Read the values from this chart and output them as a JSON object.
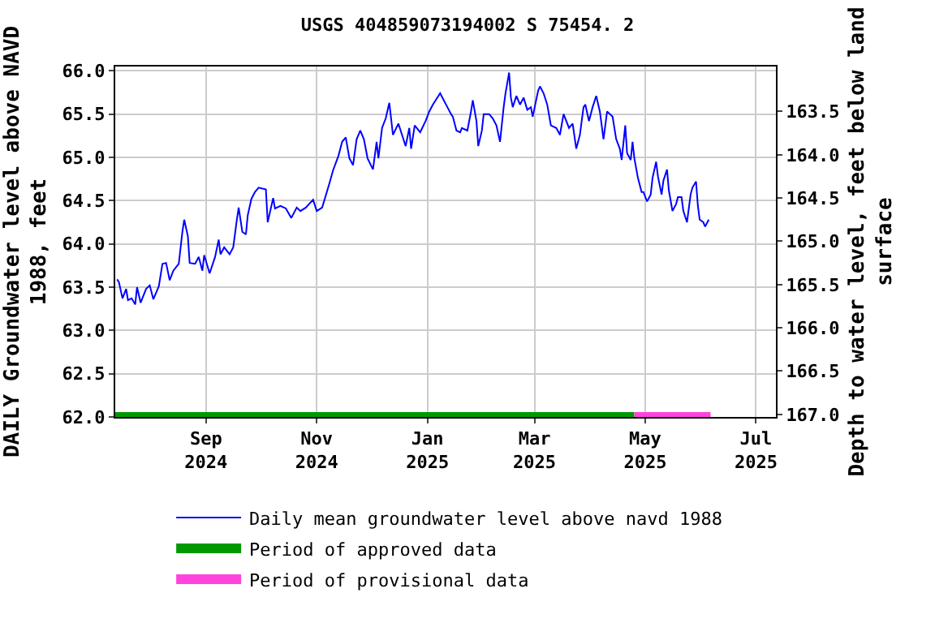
{
  "chart_data": {
    "type": "line",
    "title": "USGS 404859073194002 S 75454. 2",
    "ylabel": "DAILY Groundwater level above NAVD\n1988, feet",
    "y2label": "Depth to water level, feet below land\nsurface",
    "xlim": [
      "2024-07-13",
      "2025-07-12"
    ],
    "xticks": [
      {
        "value": "2024-09-01",
        "label": "Sep\n2024"
      },
      {
        "value": "2024-11-01",
        "label": "Nov\n2024"
      },
      {
        "value": "2025-01-01",
        "label": "Jan\n2025"
      },
      {
        "value": "2025-03-01",
        "label": "Mar\n2025"
      },
      {
        "value": "2025-05-01",
        "label": "May\n2025"
      },
      {
        "value": "2025-07-01",
        "label": "Jul\n2025"
      }
    ],
    "ylim": [
      62,
      66.05
    ],
    "yticks": [
      {
        "value": 62,
        "label": "62.0"
      },
      62.5,
      {
        "value": 63,
        "label": "63.0"
      },
      63.5,
      {
        "value": 64,
        "label": "64.0"
      },
      64.5,
      {
        "value": 65,
        "label": "65.0"
      },
      65.5,
      {
        "value": 66,
        "label": "66.0"
      }
    ],
    "y2lim": [
      167.03,
      162.98
    ],
    "y2ticks": [
      163.5,
      {
        "value": 164,
        "label": "164.0"
      },
      164.5,
      {
        "value": 165,
        "label": "165.0"
      },
      165.5,
      {
        "value": 166,
        "label": "166.0"
      },
      166.5,
      {
        "value": 167,
        "label": "167.0"
      }
    ],
    "grid": true,
    "legend": "bottom",
    "marker": "none",
    "line_style": "solid",
    "series": [
      {
        "name": "Daily mean groundwater level above navd 1988",
        "color": "#0000ff",
        "x": [
          "2024-07-14",
          "2024-07-15",
          "2024-07-17",
          "2024-07-19",
          "2024-07-20",
          "2024-07-22",
          "2024-07-24",
          "2024-07-25",
          "2024-07-27",
          "2024-07-30",
          "2024-08-01",
          "2024-08-03",
          "2024-08-06",
          "2024-08-08",
          "2024-08-10",
          "2024-08-12",
          "2024-08-14",
          "2024-08-17",
          "2024-08-19",
          "2024-08-20",
          "2024-08-22",
          "2024-08-23",
          "2024-08-26",
          "2024-08-28",
          "2024-08-30",
          "2024-08-31",
          "2024-09-03",
          "2024-09-06",
          "2024-09-08",
          "2024-09-09",
          "2024-09-11",
          "2024-09-14",
          "2024-09-16",
          "2024-09-18",
          "2024-09-19",
          "2024-09-21",
          "2024-09-23",
          "2024-09-24",
          "2024-09-26",
          "2024-09-28",
          "2024-09-30",
          "2024-10-04",
          "2024-10-05",
          "2024-10-08",
          "2024-10-09",
          "2024-10-12",
          "2024-10-15",
          "2024-10-18",
          "2024-10-21",
          "2024-10-23",
          "2024-10-26",
          "2024-10-30",
          "2024-11-01",
          "2024-11-04",
          "2024-11-06",
          "2024-11-08",
          "2024-11-10",
          "2024-11-13",
          "2024-11-15",
          "2024-11-17",
          "2024-11-19",
          "2024-11-21",
          "2024-11-23",
          "2024-11-25",
          "2024-11-27",
          "2024-11-29",
          "2024-12-02",
          "2024-12-04",
          "2024-12-05",
          "2024-12-07",
          "2024-12-09",
          "2024-12-11",
          "2024-12-13",
          "2024-12-16",
          "2024-12-18",
          "2024-12-20",
          "2024-12-22",
          "2024-12-23",
          "2024-12-25",
          "2024-12-28",
          "2024-12-31",
          "2025-01-02",
          "2025-01-04",
          "2025-01-08",
          "2025-01-12",
          "2025-01-14",
          "2025-01-15",
          "2025-01-17",
          "2025-01-19",
          "2025-01-20",
          "2025-01-23",
          "2025-01-25",
          "2025-01-26",
          "2025-01-28",
          "2025-01-29",
          "2025-01-31",
          "2025-02-01",
          "2025-02-04",
          "2025-02-06",
          "2025-02-08",
          "2025-02-10",
          "2025-02-12",
          "2025-02-13",
          "2025-02-15",
          "2025-02-16",
          "2025-02-17",
          "2025-02-19",
          "2025-02-21",
          "2025-02-23",
          "2025-02-25",
          "2025-02-27",
          "2025-02-28",
          "2025-03-03",
          "2025-03-04",
          "2025-03-06",
          "2025-03-08",
          "2025-03-10",
          "2025-03-13",
          "2025-03-15",
          "2025-03-17",
          "2025-03-20",
          "2025-03-22",
          "2025-03-24",
          "2025-03-26",
          "2025-03-28",
          "2025-03-29",
          "2025-03-31",
          "2025-04-02",
          "2025-04-04",
          "2025-04-06",
          "2025-04-08",
          "2025-04-10",
          "2025-04-13",
          "2025-04-15",
          "2025-04-17",
          "2025-04-18",
          "2025-04-20",
          "2025-04-21",
          "2025-04-23",
          "2025-04-24",
          "2025-04-25",
          "2025-04-27",
          "2025-04-29",
          "2025-04-30",
          "2025-05-02",
          "2025-05-04",
          "2025-05-05",
          "2025-05-07",
          "2025-05-08",
          "2025-05-10",
          "2025-05-11",
          "2025-05-13",
          "2025-05-14",
          "2025-05-16",
          "2025-05-18",
          "2025-05-19",
          "2025-05-21",
          "2025-05-22",
          "2025-05-24",
          "2025-05-26",
          "2025-05-27",
          "2025-05-29",
          "2025-05-30",
          "2025-05-31",
          "2025-06-02",
          "2025-06-03",
          "2025-06-05"
        ],
        "values": [
          63.59,
          63.56,
          63.37,
          63.48,
          63.35,
          63.37,
          63.3,
          63.5,
          63.32,
          63.48,
          63.52,
          63.36,
          63.51,
          63.77,
          63.78,
          63.58,
          63.69,
          63.77,
          64.14,
          64.28,
          64.09,
          63.78,
          63.77,
          63.85,
          63.69,
          63.87,
          63.66,
          63.85,
          64.05,
          63.88,
          63.96,
          63.88,
          63.96,
          64.28,
          64.42,
          64.14,
          64.11,
          64.33,
          64.52,
          64.6,
          64.65,
          64.63,
          64.25,
          64.53,
          64.41,
          64.44,
          64.41,
          64.3,
          64.42,
          64.38,
          64.42,
          64.51,
          64.38,
          64.42,
          64.56,
          64.7,
          64.85,
          65.02,
          65.18,
          65.23,
          64.99,
          64.91,
          65.21,
          65.31,
          65.21,
          64.99,
          64.86,
          65.18,
          64.99,
          65.34,
          65.45,
          65.63,
          65.26,
          65.39,
          65.26,
          65.13,
          65.34,
          65.1,
          65.37,
          65.29,
          65.42,
          65.53,
          65.61,
          65.74,
          65.58,
          65.5,
          65.47,
          65.31,
          65.29,
          65.34,
          65.31,
          65.53,
          65.66,
          65.42,
          65.13,
          65.31,
          65.5,
          65.5,
          65.45,
          65.37,
          65.18,
          65.58,
          65.74,
          65.98,
          65.69,
          65.58,
          65.71,
          65.61,
          65.69,
          65.55,
          65.58,
          65.47,
          65.77,
          65.82,
          65.74,
          65.61,
          65.37,
          65.34,
          65.26,
          65.5,
          65.34,
          65.39,
          65.1,
          65.26,
          65.58,
          65.61,
          65.42,
          65.58,
          65.71,
          65.53,
          65.21,
          65.53,
          65.47,
          65.21,
          65.1,
          64.97,
          65.37,
          65.05,
          64.97,
          65.18,
          64.99,
          64.76,
          64.6,
          64.6,
          64.49,
          64.57,
          64.76,
          64.95,
          64.78,
          64.57,
          64.73,
          64.86,
          64.62,
          64.38,
          64.46,
          64.54,
          64.54,
          64.38,
          64.25,
          64.57,
          64.65,
          64.72,
          64.44,
          64.28,
          64.25,
          64.2,
          64.28
        ]
      },
      {
        "name": "Period of approved data",
        "color": "#009900",
        "x": [
          "2024-07-13",
          "2025-04-25"
        ],
        "values": [
          62,
          62
        ]
      },
      {
        "name": "Period of provisional data",
        "color": "#ff44dd",
        "x": [
          "2025-04-25",
          "2025-06-06"
        ],
        "values": [
          62,
          62
        ]
      }
    ]
  }
}
